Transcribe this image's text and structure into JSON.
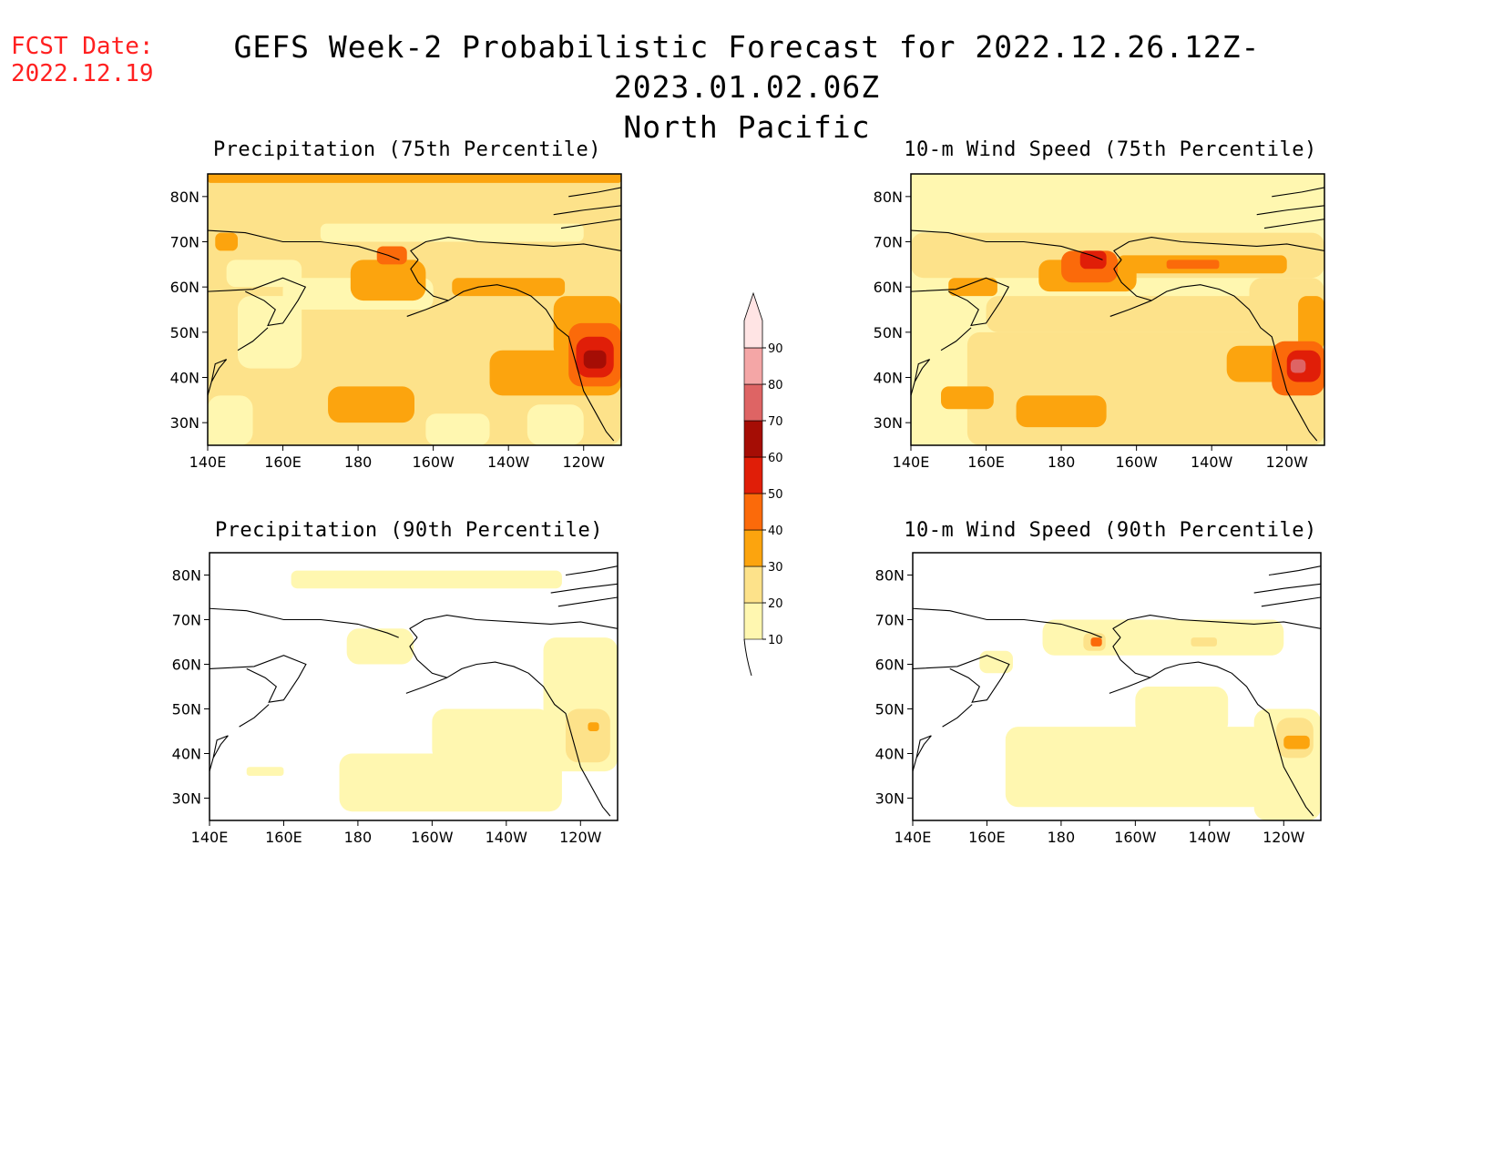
{
  "header": {
    "fcst_label": "FCST Date:",
    "fcst_date": "2022.12.19",
    "title": "GEFS Week-2 Probabilistic Forecast for 2022.12.26.12Z-2023.01.02.06Z",
    "region": "North Pacific"
  },
  "map_extent": {
    "lon": [
      140,
      250
    ],
    "lat": [
      25,
      85
    ]
  },
  "lat_ticks": [
    {
      "lat": 80,
      "label": "80N"
    },
    {
      "lat": 70,
      "label": "70N"
    },
    {
      "lat": 60,
      "label": "60N"
    },
    {
      "lat": 50,
      "label": "50N"
    },
    {
      "lat": 40,
      "label": "40N"
    },
    {
      "lat": 30,
      "label": "30N"
    }
  ],
  "lon_ticks": [
    {
      "lon": 140,
      "label": "140E"
    },
    {
      "lon": 160,
      "label": "160E"
    },
    {
      "lon": 180,
      "label": "180"
    },
    {
      "lon": 200,
      "label": "160W"
    },
    {
      "lon": 220,
      "label": "140W"
    },
    {
      "lon": 240,
      "label": "120W"
    }
  ],
  "colorbar": {
    "levels": [
      {
        "value": 10,
        "label": "10",
        "color": "#fff7b0"
      },
      {
        "value": 20,
        "label": "20",
        "color": "#fde28a"
      },
      {
        "value": 30,
        "label": "30",
        "color": "#fca40e"
      },
      {
        "value": 40,
        "label": "40",
        "color": "#fb6a0a"
      },
      {
        "value": 50,
        "label": "50",
        "color": "#e01e08"
      },
      {
        "value": 60,
        "label": "60",
        "color": "#a50d05"
      },
      {
        "value": 70,
        "label": "70",
        "color": "#de6464"
      },
      {
        "value": 80,
        "label": "80",
        "color": "#f4a6a6"
      },
      {
        "value": 90,
        "label": "90",
        "color": "#ffe4e4"
      }
    ]
  },
  "panels": [
    {
      "title": "Precipitation (75th Percentile)",
      "background_value": 10,
      "regions": [
        {
          "value": 20,
          "lon": [
            140,
            250
          ],
          "lat": [
            25,
            85
          ]
        },
        {
          "value": 10,
          "lon": [
            140,
            152
          ],
          "lat": [
            25,
            36
          ]
        },
        {
          "value": 10,
          "lon": [
            198,
            215
          ],
          "lat": [
            25,
            32
          ]
        },
        {
          "value": 10,
          "lon": [
            225,
            240
          ],
          "lat": [
            25,
            34
          ]
        },
        {
          "value": 10,
          "lon": [
            145,
            165
          ],
          "lat": [
            60,
            66
          ]
        },
        {
          "value": 10,
          "lon": [
            160,
            200
          ],
          "lat": [
            55,
            62
          ]
        },
        {
          "value": 10,
          "lon": [
            148,
            165
          ],
          "lat": [
            42,
            58
          ]
        },
        {
          "value": 10,
          "lon": [
            170,
            240
          ],
          "lat": [
            70,
            74
          ]
        },
        {
          "value": 30,
          "lon": [
            140,
            250
          ],
          "lat": [
            83,
            85
          ]
        },
        {
          "value": 30,
          "lon": [
            172,
            195
          ],
          "lat": [
            30,
            38
          ]
        },
        {
          "value": 30,
          "lon": [
            215,
            250
          ],
          "lat": [
            36,
            46
          ]
        },
        {
          "value": 30,
          "lon": [
            232,
            250
          ],
          "lat": [
            44,
            58
          ]
        },
        {
          "value": 30,
          "lon": [
            178,
            198
          ],
          "lat": [
            57,
            66
          ]
        },
        {
          "value": 30,
          "lon": [
            205,
            235
          ],
          "lat": [
            58,
            62
          ]
        },
        {
          "value": 30,
          "lon": [
            142,
            148
          ],
          "lat": [
            68,
            72
          ]
        },
        {
          "value": 40,
          "lon": [
            236,
            250
          ],
          "lat": [
            38,
            52
          ]
        },
        {
          "value": 40,
          "lon": [
            185,
            193
          ],
          "lat": [
            65,
            69
          ]
        },
        {
          "value": 50,
          "lon": [
            238,
            248
          ],
          "lat": [
            40,
            49
          ]
        },
        {
          "value": 60,
          "lon": [
            240,
            246
          ],
          "lat": [
            42,
            46
          ]
        }
      ]
    },
    {
      "title": "10-m Wind Speed (75th Percentile)",
      "background_value": 10,
      "regions": [
        {
          "value": 20,
          "lon": [
            155,
            250
          ],
          "lat": [
            25,
            50
          ]
        },
        {
          "value": 20,
          "lon": [
            160,
            235
          ],
          "lat": [
            50,
            58
          ]
        },
        {
          "value": 20,
          "lon": [
            140,
            250
          ],
          "lat": [
            62,
            72
          ]
        },
        {
          "value": 20,
          "lon": [
            230,
            250
          ],
          "lat": [
            25,
            62
          ]
        },
        {
          "value": 30,
          "lon": [
            168,
            192
          ],
          "lat": [
            29,
            36
          ]
        },
        {
          "value": 30,
          "lon": [
            148,
            162
          ],
          "lat": [
            33,
            38
          ]
        },
        {
          "value": 30,
          "lon": [
            224,
            250
          ],
          "lat": [
            39,
            47
          ]
        },
        {
          "value": 30,
          "lon": [
            243,
            250
          ],
          "lat": [
            46,
            58
          ]
        },
        {
          "value": 30,
          "lon": [
            174,
            200
          ],
          "lat": [
            59,
            66
          ]
        },
        {
          "value": 30,
          "lon": [
            195,
            240
          ],
          "lat": [
            63,
            67
          ]
        },
        {
          "value": 30,
          "lon": [
            150,
            163
          ],
          "lat": [
            58,
            62
          ]
        },
        {
          "value": 40,
          "lon": [
            236,
            250
          ],
          "lat": [
            36,
            48
          ]
        },
        {
          "value": 40,
          "lon": [
            180,
            195
          ],
          "lat": [
            61,
            68
          ]
        },
        {
          "value": 40,
          "lon": [
            208,
            222
          ],
          "lat": [
            64,
            66
          ]
        },
        {
          "value": 50,
          "lon": [
            240,
            249
          ],
          "lat": [
            39,
            46
          ]
        },
        {
          "value": 50,
          "lon": [
            185,
            192
          ],
          "lat": [
            64,
            68
          ]
        },
        {
          "value": 70,
          "lon": [
            241,
            245
          ],
          "lat": [
            41,
            44
          ]
        }
      ]
    },
    {
      "title": "Precipitation (90th Percentile)",
      "background_value": 0,
      "regions": [
        {
          "value": 10,
          "lon": [
            162,
            235
          ],
          "lat": [
            77,
            81
          ]
        },
        {
          "value": 10,
          "lon": [
            175,
            235
          ],
          "lat": [
            27,
            40
          ]
        },
        {
          "value": 10,
          "lon": [
            200,
            232
          ],
          "lat": [
            38,
            50
          ]
        },
        {
          "value": 10,
          "lon": [
            230,
            250
          ],
          "lat": [
            36,
            66
          ]
        },
        {
          "value": 10,
          "lon": [
            177,
            195
          ],
          "lat": [
            60,
            68
          ]
        },
        {
          "value": 10,
          "lon": [
            150,
            160
          ],
          "lat": [
            35,
            37
          ]
        },
        {
          "value": 20,
          "lon": [
            236,
            248
          ],
          "lat": [
            38,
            50
          ]
        },
        {
          "value": 20,
          "lon": [
            241,
            246
          ],
          "lat": [
            44,
            48
          ]
        },
        {
          "value": 30,
          "lon": [
            242,
            245
          ],
          "lat": [
            45,
            47
          ]
        }
      ]
    },
    {
      "title": "10-m Wind Speed (90th Percentile)",
      "background_value": 0,
      "regions": [
        {
          "value": 10,
          "lon": [
            165,
            235
          ],
          "lat": [
            28,
            46
          ]
        },
        {
          "value": 10,
          "lon": [
            200,
            225
          ],
          "lat": [
            44,
            55
          ]
        },
        {
          "value": 10,
          "lon": [
            232,
            250
          ],
          "lat": [
            25,
            50
          ]
        },
        {
          "value": 10,
          "lon": [
            175,
            240
          ],
          "lat": [
            62,
            70
          ]
        },
        {
          "value": 10,
          "lon": [
            158,
            167
          ],
          "lat": [
            58,
            63
          ]
        },
        {
          "value": 20,
          "lon": [
            238,
            248
          ],
          "lat": [
            39,
            48
          ]
        },
        {
          "value": 20,
          "lon": [
            186,
            192
          ],
          "lat": [
            63,
            67
          ]
        },
        {
          "value": 20,
          "lon": [
            215,
            222
          ],
          "lat": [
            64,
            66
          ]
        },
        {
          "value": 30,
          "lon": [
            240,
            247
          ],
          "lat": [
            41,
            44
          ]
        },
        {
          "value": 40,
          "lon": [
            188,
            191
          ],
          "lat": [
            64,
            66
          ]
        }
      ]
    }
  ]
}
